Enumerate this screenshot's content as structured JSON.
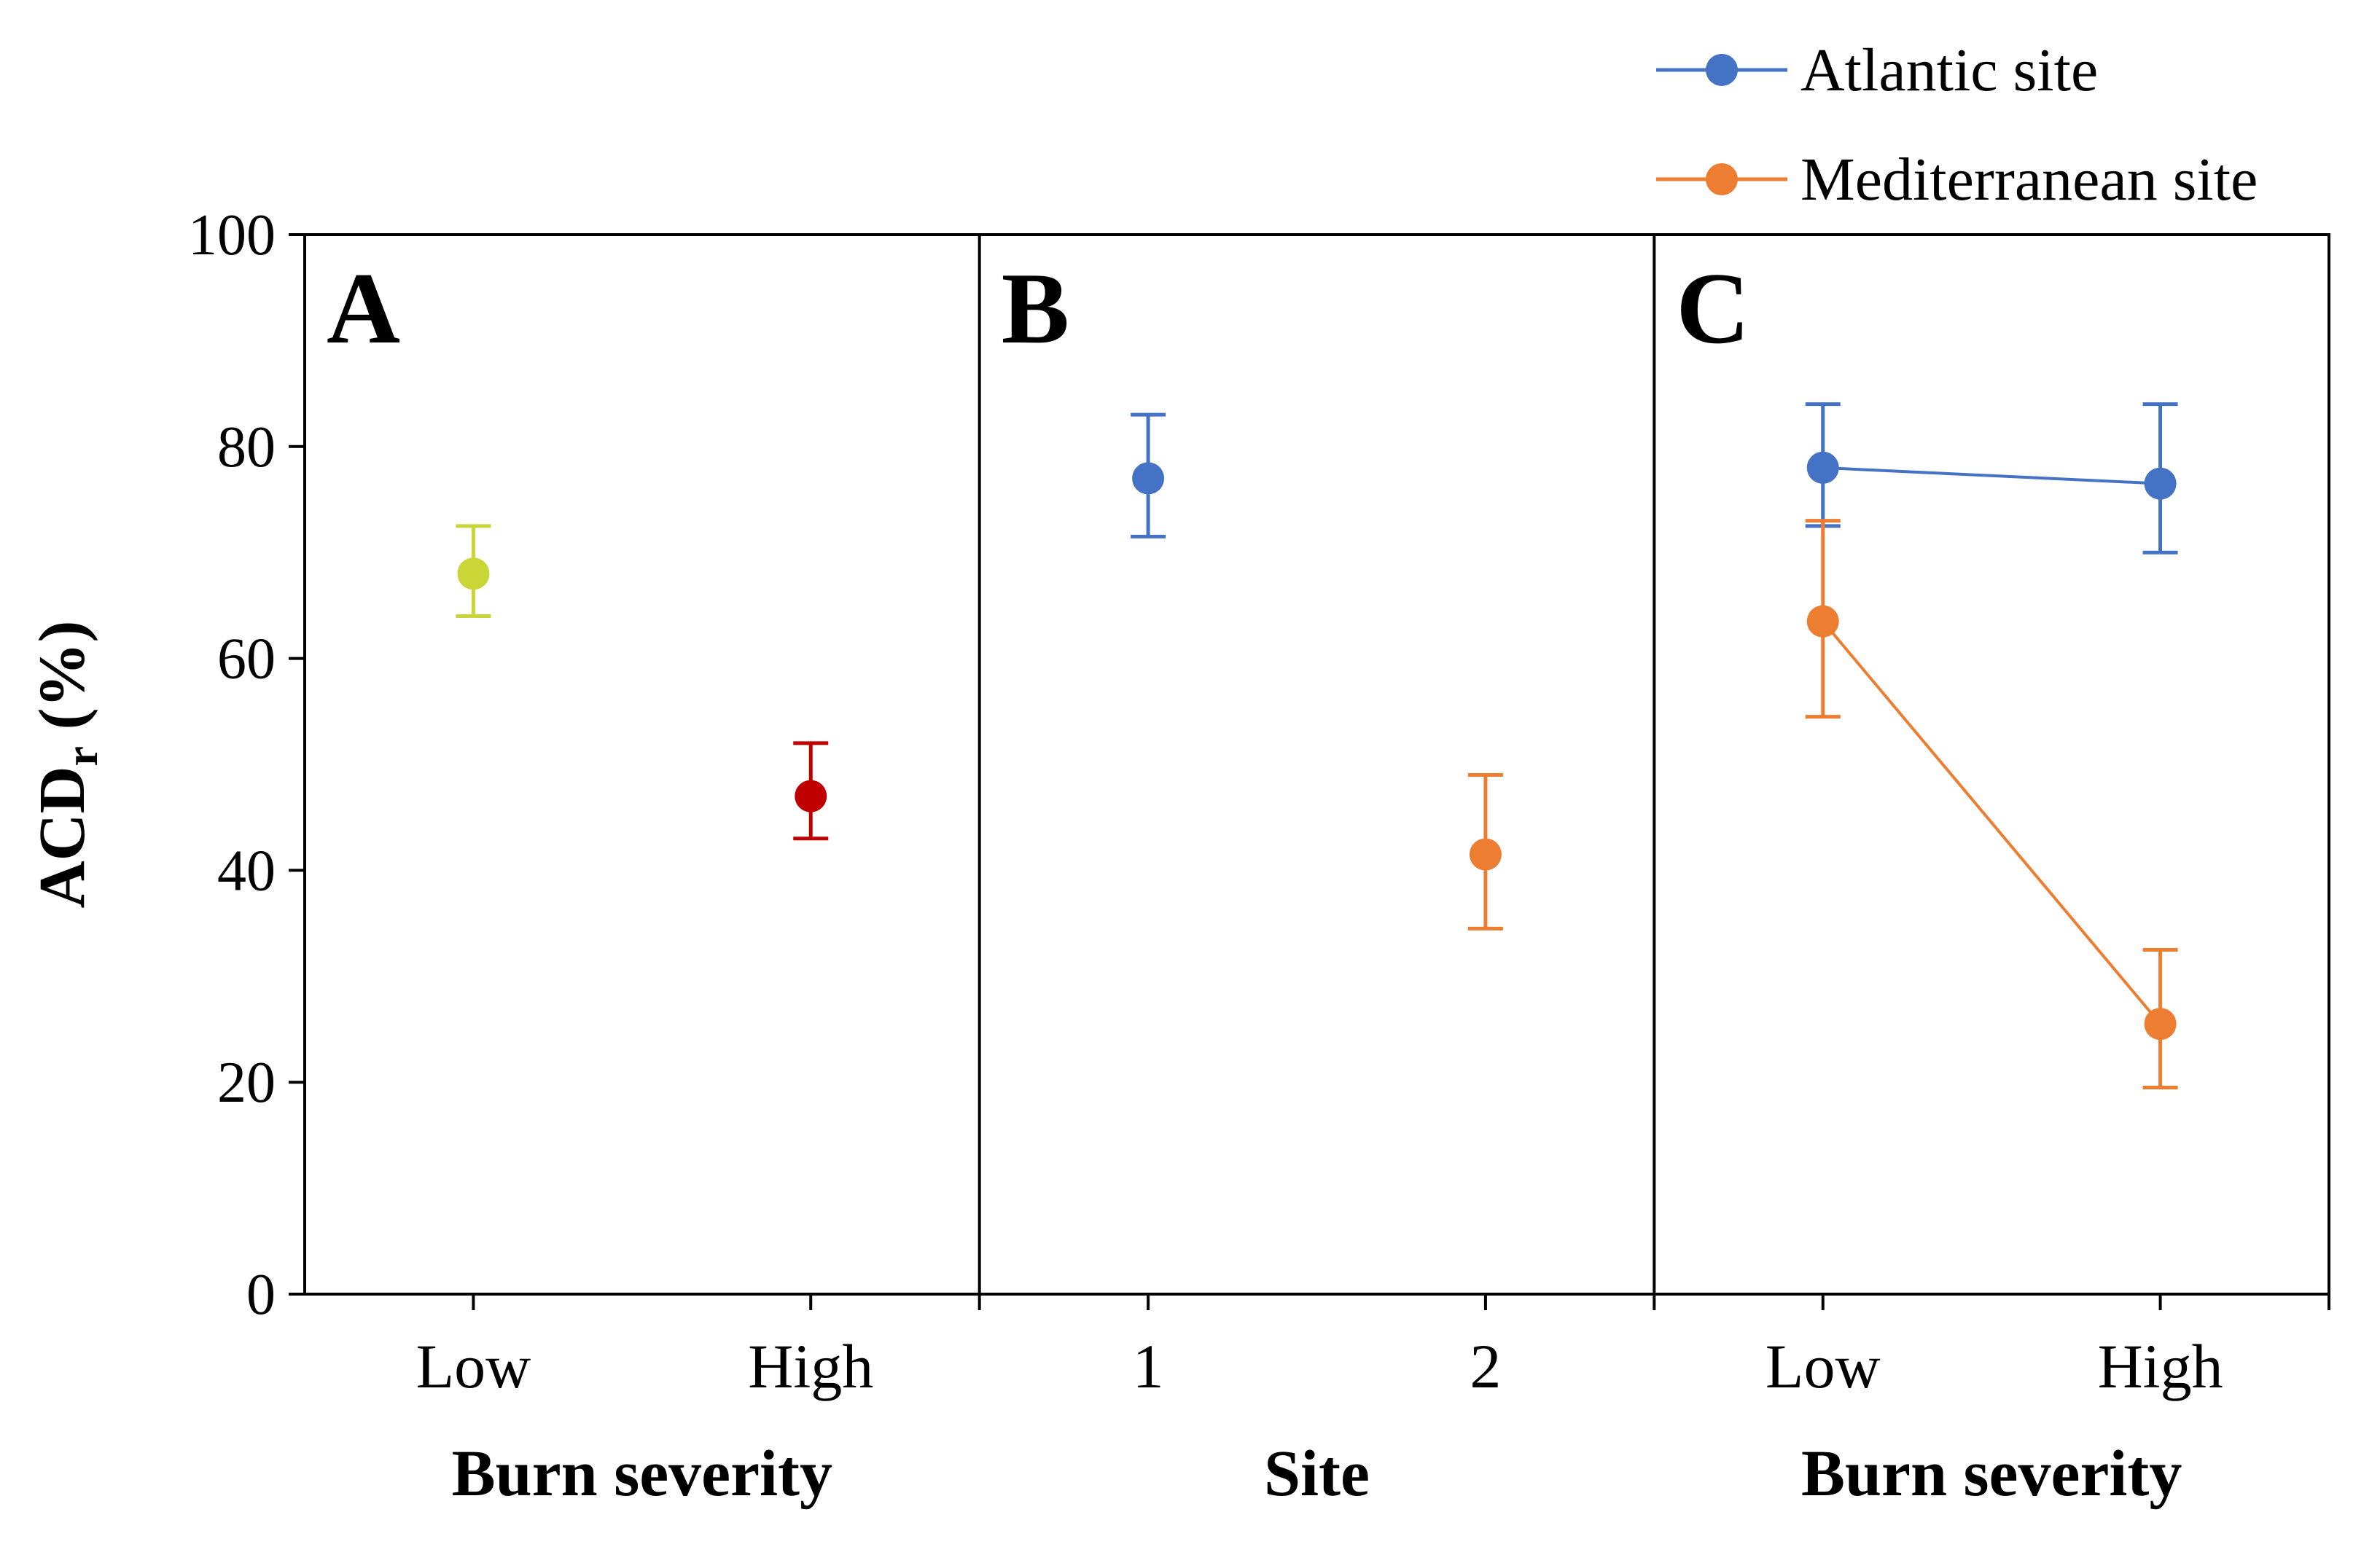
{
  "chart_data": {
    "type": "scatter",
    "ylabel": "ACD",
    "ylabel_subscript": "r",
    "ylabel_suffix": " (%)",
    "ylim": [
      0,
      100
    ],
    "yticks": [
      "0",
      "20",
      "40",
      "60",
      "80",
      "100"
    ],
    "legend": {
      "position": "top-right",
      "entries": [
        {
          "name": "Atlantic site",
          "color": "#4472c4"
        },
        {
          "name": "Mediterranean site",
          "color": "#ed7d31"
        }
      ]
    },
    "panels": [
      {
        "label": "A",
        "xlabel": "Burn severity",
        "categories": [
          "Low",
          "High"
        ],
        "points": [
          {
            "category": "Low",
            "value": 68,
            "err_low": 64,
            "err_high": 72.5,
            "color": "#c9d636"
          },
          {
            "category": "High",
            "value": 47,
            "err_low": 43,
            "err_high": 52,
            "color": "#c00000"
          }
        ]
      },
      {
        "label": "B",
        "xlabel": "Site",
        "categories": [
          "1",
          "2"
        ],
        "points": [
          {
            "category": "1",
            "value": 77,
            "err_low": 71.5,
            "err_high": 83,
            "color": "#4472c4"
          },
          {
            "category": "2",
            "value": 41.5,
            "err_low": 34.5,
            "err_high": 49,
            "color": "#ed7d31"
          }
        ]
      },
      {
        "label": "C",
        "xlabel": "Burn severity",
        "categories": [
          "Low",
          "High"
        ],
        "series": [
          {
            "name": "Atlantic site",
            "color": "#4472c4",
            "values": [
              78,
              76.5
            ],
            "err_low": [
              72.5,
              70
            ],
            "err_high": [
              84,
              84
            ]
          },
          {
            "name": "Mediterranean site",
            "color": "#ed7d31",
            "values": [
              63.5,
              25.5
            ],
            "err_low": [
              54.5,
              19.5
            ],
            "err_high": [
              73,
              32.5
            ]
          }
        ]
      }
    ]
  }
}
